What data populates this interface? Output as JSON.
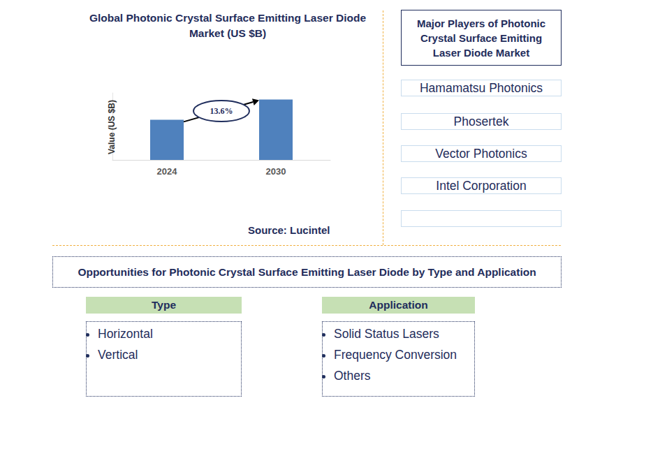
{
  "chart_data": {
    "type": "bar",
    "title": "Global Photonic Crystal Surface Emitting Laser Diode Market (US $B)",
    "y_label": "Value (US $B)",
    "categories": [
      "2024",
      "2030"
    ],
    "values": [
      0.6,
      0.9
    ],
    "color": "#4f81bd",
    "ylim": [
      0,
      1
    ],
    "tick_labels": "x",
    "grid": false,
    "annotation": "13.6%",
    "source": "Source: Lucintel"
  },
  "players": {
    "title": "Major Players of Photonic Crystal Surface Emitting Laser Diode Market",
    "items": [
      "Hamamatsu Photonics",
      "Phosertek",
      "Vector Photonics",
      "Intel Corporation"
    ]
  },
  "opportunities": {
    "title": "Opportunities for Photonic Crystal Surface Emitting Laser Diode by Type and Application",
    "type": {
      "header": "Type",
      "items": [
        "Horizontal",
        "Vertical"
      ]
    },
    "application": {
      "header": "Application",
      "items": [
        "Solid Status Lasers",
        "Frequency Conversion",
        "Others"
      ]
    }
  }
}
